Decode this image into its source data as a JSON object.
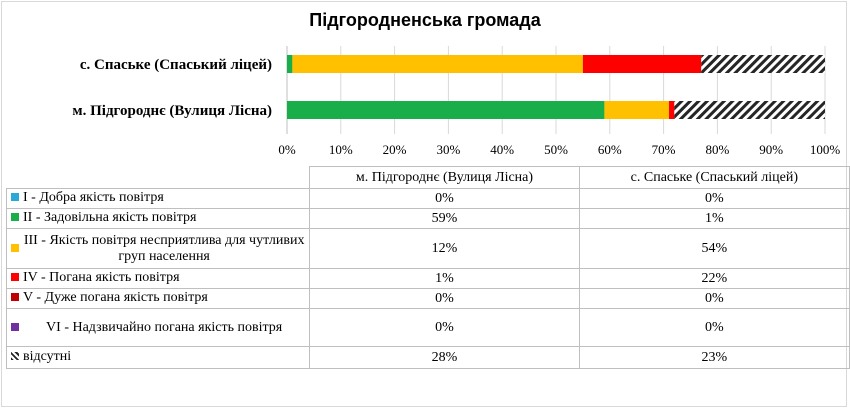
{
  "colors": {
    "I": "#2aa9d6",
    "II": "#1aae4b",
    "III": "#ffc000",
    "IV": "#ff0000",
    "V": "#c00000",
    "VI": "#7030a0",
    "missing": "hatch"
  },
  "chart_data": {
    "type": "bar",
    "orientation": "horizontal",
    "stacked": "percent",
    "title": "Підгородненська громада",
    "categories": [
      "с. Спаське (Спаський  ліцей)",
      "м. Підгороднє (Вулиця Лісна)"
    ],
    "table_headers": [
      "м. Підгороднє (Вулиця Лісна)",
      "с. Спаське (Спаський ліцей)"
    ],
    "xlim": [
      0,
      100
    ],
    "xticks": [
      "0%",
      "10%",
      "20%",
      "30%",
      "40%",
      "50%",
      "60%",
      "70%",
      "80%",
      "90%",
      "100%"
    ],
    "series": [
      {
        "key": "I",
        "name": "I - Добра якість  повітря",
        "values": [
          0,
          0
        ],
        "labels": [
          "0%",
          "0%"
        ]
      },
      {
        "key": "II",
        "name": "II - Задовільна якість  повітря",
        "values": [
          1,
          59
        ],
        "labels": [
          "59%",
          "1%"
        ]
      },
      {
        "key": "III",
        "name": "III - Якість повітря несприятлива для чутливих груп населення",
        "values": [
          54,
          12
        ],
        "labels": [
          "12%",
          "54%"
        ]
      },
      {
        "key": "IV",
        "name": "IV - Погана якість  повітря",
        "values": [
          22,
          1
        ],
        "labels": [
          "1%",
          "22%"
        ]
      },
      {
        "key": "V",
        "name": "V - Дуже погана якість  повітря",
        "values": [
          0,
          0
        ],
        "labels": [
          "0%",
          "0%"
        ]
      },
      {
        "key": "VI",
        "name": "VI - Надзвичайно погана якість повітря",
        "values": [
          0,
          0
        ],
        "labels": [
          "0%",
          "0%"
        ]
      },
      {
        "key": "missing",
        "name": "відсутні",
        "values": [
          23,
          28
        ],
        "labels": [
          "28%",
          "23%"
        ]
      }
    ]
  }
}
